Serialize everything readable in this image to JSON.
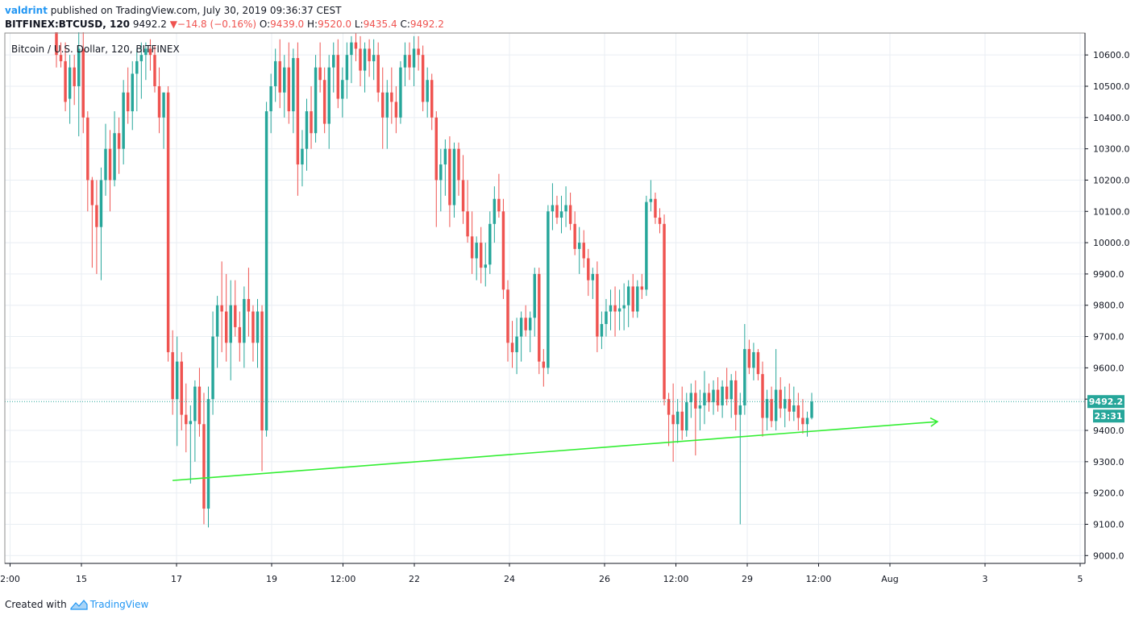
{
  "header": {
    "author": "valdrint",
    "published": "published on TradingView.com, July 30, 2019 09:36:37 CEST"
  },
  "quote": {
    "symbol": "BITFINEX:BTCUSD, 120",
    "last": "9492.2",
    "arrow": "▼",
    "change": "−14.8 (−0.16%)",
    "o_label": "O:",
    "o": "9439.0",
    "h_label": "H:",
    "h": "9520.0",
    "l_label": "L:",
    "l": "9435.4",
    "c_label": "C:",
    "c": "9492.2"
  },
  "legend": "Bitcoin / U.S. Dollar, 120, BITFINEX",
  "price_badge": "9492.2",
  "countdown_badge": "23:31",
  "footer": {
    "created_with": "Created with",
    "brand": "TradingView"
  },
  "colors": {
    "up": "#26a69a",
    "down": "#ef5350",
    "trendline": "#33ee33",
    "badge": "#26a69a"
  },
  "chart_data": {
    "type": "candlestick",
    "title": "Bitcoin / U.S. Dollar, 120, BITFINEX",
    "interval": "120",
    "ylim": [
      8975,
      10670
    ],
    "y_ticks": [
      9000,
      9100,
      9200,
      9300,
      9400,
      9500,
      9600,
      9700,
      9800,
      9900,
      10000,
      10100,
      10200,
      10300,
      10400,
      10500,
      10600
    ],
    "y_tick_labels": [
      "9000.0",
      "9100.0",
      "9200.0",
      "9300.0",
      "9400.0",
      "9500.0",
      "9600.0",
      "9700.0",
      "9800.0",
      "9900.0",
      "10000.0",
      "10100.0",
      "10200.0",
      "10300.0",
      "10400.0",
      "10500.0",
      "10600.0"
    ],
    "x_tick_labels": [
      "2:00",
      "15",
      "17",
      "19",
      "12:00",
      "22",
      "24",
      "26",
      "12:00",
      "29",
      "12:00",
      "Aug",
      "3",
      "5"
    ],
    "last_price": 9492.2,
    "grid": true,
    "trendline": {
      "start": {
        "date": "2019-07-16 22:00",
        "price": 9240
      },
      "end": {
        "date": "2019-08-02 00:00",
        "price": 9428
      }
    },
    "candles": [
      [
        10680,
        10680,
        10560,
        10600
      ],
      [
        10600,
        10640,
        10560,
        10580
      ],
      [
        10580,
        10640,
        10420,
        10450
      ],
      [
        10460,
        10600,
        10380,
        10560
      ],
      [
        10560,
        10600,
        10440,
        10500
      ],
      [
        10500,
        10680,
        10340,
        10620
      ],
      [
        10620,
        10680,
        10350,
        10400
      ],
      [
        10400,
        10420,
        10100,
        10200
      ],
      [
        10200,
        10210,
        9920,
        10120
      ],
      [
        10120,
        10200,
        9900,
        10050
      ],
      [
        10050,
        10240,
        9880,
        10200
      ],
      [
        10200,
        10380,
        10150,
        10300
      ],
      [
        10300,
        10360,
        10100,
        10200
      ],
      [
        10200,
        10420,
        10180,
        10350
      ],
      [
        10350,
        10400,
        10220,
        10300
      ],
      [
        10300,
        10520,
        10250,
        10480
      ],
      [
        10480,
        10560,
        10380,
        10420
      ],
      [
        10420,
        10580,
        10360,
        10540
      ],
      [
        10540,
        10620,
        10420,
        10580
      ],
      [
        10580,
        10640,
        10460,
        10600
      ],
      [
        10600,
        10640,
        10520,
        10620
      ],
      [
        10620,
        10650,
        10550,
        10600
      ],
      [
        10600,
        10630,
        10480,
        10500
      ],
      [
        10500,
        10560,
        10350,
        10400
      ],
      [
        10400,
        10480,
        10300,
        10480
      ],
      [
        10480,
        10500,
        9620,
        9650
      ],
      [
        9650,
        9720,
        9450,
        9500
      ],
      [
        9500,
        9700,
        9350,
        9620
      ],
      [
        9620,
        9650,
        9400,
        9450
      ],
      [
        9450,
        9550,
        9330,
        9420
      ],
      [
        9420,
        9480,
        9230,
        9430
      ],
      [
        9430,
        9560,
        9300,
        9540
      ],
      [
        9540,
        9600,
        9380,
        9420
      ],
      [
        9420,
        9520,
        9100,
        9150
      ],
      [
        9150,
        9540,
        9090,
        9500
      ],
      [
        9500,
        9780,
        9450,
        9700
      ],
      [
        9700,
        9830,
        9600,
        9800
      ],
      [
        9800,
        9940,
        9650,
        9780
      ],
      [
        9780,
        9900,
        9620,
        9680
      ],
      [
        9680,
        9880,
        9560,
        9800
      ],
      [
        9800,
        9880,
        9700,
        9730
      ],
      [
        9730,
        9780,
        9620,
        9680
      ],
      [
        9680,
        9860,
        9600,
        9820
      ],
      [
        9820,
        9920,
        9700,
        9780
      ],
      [
        9780,
        9800,
        9620,
        9680
      ],
      [
        9680,
        9820,
        9600,
        9780
      ],
      [
        9780,
        9800,
        9270,
        9400
      ],
      [
        9400,
        10450,
        9380,
        10420
      ],
      [
        10420,
        10540,
        10350,
        10500
      ],
      [
        10500,
        10620,
        10450,
        10580
      ],
      [
        10580,
        10650,
        10430,
        10480
      ],
      [
        10480,
        10600,
        10400,
        10560
      ],
      [
        10560,
        10640,
        10380,
        10420
      ],
      [
        10420,
        10620,
        10350,
        10590
      ],
      [
        10590,
        10640,
        10150,
        10250
      ],
      [
        10250,
        10360,
        10180,
        10300
      ],
      [
        10300,
        10460,
        10230,
        10420
      ],
      [
        10420,
        10500,
        10300,
        10350
      ],
      [
        10350,
        10600,
        10320,
        10560
      ],
      [
        10560,
        10640,
        10480,
        10520
      ],
      [
        10520,
        10560,
        10350,
        10380
      ],
      [
        10380,
        10600,
        10300,
        10560
      ],
      [
        10560,
        10640,
        10480,
        10600
      ],
      [
        10600,
        10650,
        10430,
        10460
      ],
      [
        10460,
        10560,
        10400,
        10520
      ],
      [
        10520,
        10640,
        10460,
        10600
      ],
      [
        10600,
        10660,
        10510,
        10640
      ],
      [
        10640,
        10670,
        10580,
        10620
      ],
      [
        10620,
        10660,
        10500,
        10550
      ],
      [
        10550,
        10640,
        10480,
        10620
      ],
      [
        10620,
        10650,
        10530,
        10580
      ],
      [
        10580,
        10650,
        10520,
        10600
      ],
      [
        10600,
        10640,
        10450,
        10480
      ],
      [
        10480,
        10560,
        10300,
        10400
      ],
      [
        10400,
        10520,
        10300,
        10480
      ],
      [
        10480,
        10560,
        10380,
        10450
      ],
      [
        10450,
        10500,
        10350,
        10400
      ],
      [
        10400,
        10580,
        10380,
        10560
      ],
      [
        10560,
        10640,
        10500,
        10600
      ],
      [
        10600,
        10640,
        10520,
        10560
      ],
      [
        10560,
        10660,
        10500,
        10620
      ],
      [
        10620,
        10660,
        10550,
        10600
      ],
      [
        10600,
        10630,
        10420,
        10450
      ],
      [
        10450,
        10560,
        10400,
        10520
      ],
      [
        10520,
        10540,
        10360,
        10400
      ],
      [
        10400,
        10420,
        10050,
        10200
      ],
      [
        10200,
        10300,
        10100,
        10250
      ],
      [
        10250,
        10330,
        10150,
        10300
      ],
      [
        10300,
        10340,
        10050,
        10120
      ],
      [
        10120,
        10320,
        10080,
        10300
      ],
      [
        10300,
        10320,
        10150,
        10200
      ],
      [
        10200,
        10280,
        10060,
        10100
      ],
      [
        10100,
        10200,
        10000,
        10020
      ],
      [
        10020,
        10100,
        9900,
        9950
      ],
      [
        9950,
        10020,
        9880,
        10000
      ],
      [
        10000,
        10050,
        9870,
        9920
      ],
      [
        9920,
        10000,
        9860,
        9930
      ],
      [
        9930,
        10100,
        9900,
        10060
      ],
      [
        10060,
        10180,
        10000,
        10140
      ],
      [
        10140,
        10220,
        10080,
        10100
      ],
      [
        10100,
        10140,
        9820,
        9850
      ],
      [
        9850,
        9880,
        9620,
        9680
      ],
      [
        9680,
        9750,
        9600,
        9650
      ],
      [
        9650,
        9760,
        9580,
        9700
      ],
      [
        9700,
        9780,
        9620,
        9760
      ],
      [
        9760,
        9800,
        9700,
        9720
      ],
      [
        9720,
        9780,
        9650,
        9760
      ],
      [
        9760,
        9920,
        9700,
        9900
      ],
      [
        9900,
        9920,
        9580,
        9620
      ],
      [
        9620,
        9660,
        9540,
        9600
      ],
      [
        9600,
        10120,
        9580,
        10100
      ],
      [
        10100,
        10190,
        10040,
        10120
      ],
      [
        10120,
        10150,
        10060,
        10080
      ],
      [
        10080,
        10150,
        10030,
        10100
      ],
      [
        10100,
        10180,
        10050,
        10120
      ],
      [
        10120,
        10160,
        10040,
        10060
      ],
      [
        10060,
        10100,
        9960,
        9980
      ],
      [
        9980,
        10050,
        9900,
        10000
      ],
      [
        10000,
        10040,
        9920,
        9950
      ],
      [
        9950,
        9980,
        9830,
        9880
      ],
      [
        9880,
        9920,
        9820,
        9900
      ],
      [
        9900,
        9940,
        9650,
        9700
      ],
      [
        9700,
        9780,
        9660,
        9740
      ],
      [
        9740,
        9820,
        9700,
        9780
      ],
      [
        9780,
        9850,
        9720,
        9800
      ],
      [
        9800,
        9860,
        9700,
        9780
      ],
      [
        9780,
        9850,
        9720,
        9790
      ],
      [
        9790,
        9870,
        9720,
        9800
      ],
      [
        9800,
        9880,
        9730,
        9860
      ],
      [
        9860,
        9900,
        9760,
        9780
      ],
      [
        9780,
        9880,
        9760,
        9860
      ],
      [
        9860,
        9900,
        9820,
        9850
      ],
      [
        9850,
        10150,
        9830,
        10130
      ],
      [
        10130,
        10200,
        10100,
        10140
      ],
      [
        10140,
        10160,
        10060,
        10080
      ],
      [
        10080,
        10110,
        10030,
        10060
      ],
      [
        10060,
        10090,
        9480,
        9500
      ],
      [
        9500,
        9520,
        9350,
        9450
      ],
      [
        9450,
        9550,
        9300,
        9420
      ],
      [
        9420,
        9500,
        9360,
        9460
      ],
      [
        9460,
        9540,
        9370,
        9400
      ],
      [
        9400,
        9520,
        9380,
        9490
      ],
      [
        9490,
        9550,
        9440,
        9520
      ],
      [
        9520,
        9560,
        9320,
        9470
      ],
      [
        9470,
        9530,
        9400,
        9480
      ],
      [
        9480,
        9590,
        9420,
        9520
      ],
      [
        9520,
        9550,
        9460,
        9490
      ],
      [
        9490,
        9560,
        9450,
        9530
      ],
      [
        9530,
        9570,
        9460,
        9480
      ],
      [
        9480,
        9560,
        9440,
        9540
      ],
      [
        9540,
        9600,
        9480,
        9500
      ],
      [
        9500,
        9580,
        9440,
        9560
      ],
      [
        9560,
        9590,
        9400,
        9450
      ],
      [
        9450,
        9520,
        9100,
        9480
      ],
      [
        9480,
        9740,
        9450,
        9660
      ],
      [
        9660,
        9690,
        9580,
        9600
      ],
      [
        9600,
        9680,
        9560,
        9650
      ],
      [
        9650,
        9660,
        9560,
        9580
      ],
      [
        9580,
        9620,
        9380,
        9440
      ],
      [
        9440,
        9530,
        9400,
        9500
      ],
      [
        9500,
        9540,
        9410,
        9430
      ],
      [
        9430,
        9660,
        9400,
        9530
      ],
      [
        9530,
        9570,
        9440,
        9470
      ],
      [
        9470,
        9540,
        9410,
        9500
      ],
      [
        9500,
        9550,
        9430,
        9460
      ],
      [
        9460,
        9540,
        9430,
        9480
      ],
      [
        9480,
        9520,
        9400,
        9440
      ],
      [
        9440,
        9500,
        9390,
        9420
      ],
      [
        9420,
        9460,
        9380,
        9440
      ],
      [
        9440,
        9520,
        9435,
        9492
      ]
    ]
  }
}
